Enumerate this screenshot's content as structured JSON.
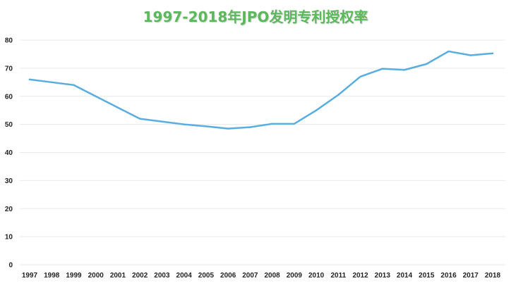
{
  "chart_data": {
    "type": "line",
    "title": "1997-2018年JPO发明专利授权率",
    "xlabel": "",
    "ylabel": "",
    "x": [
      "1997",
      "1998",
      "1999",
      "2000",
      "2001",
      "2002",
      "2003",
      "2004",
      "2005",
      "2006",
      "2007",
      "2008",
      "2009",
      "2010",
      "2011",
      "2012",
      "2013",
      "2014",
      "2015",
      "2016",
      "2017",
      "2018"
    ],
    "series": [
      {
        "values": [
          66,
          65,
          64,
          60,
          56,
          52,
          51,
          50,
          49.3,
          48.5,
          49,
          50.2,
          50.2,
          55,
          60.5,
          67,
          69.8,
          69.4,
          71.5,
          76,
          74.6,
          75.3
        ]
      }
    ],
    "ylim": [
      0,
      80
    ],
    "yticks": [
      0,
      10,
      20,
      30,
      40,
      50,
      60,
      70,
      80
    ],
    "grid": true,
    "legend": "none",
    "colors": {
      "line": "#5aade0",
      "grid": "#e9e9e9",
      "title": "#5cb85c"
    }
  }
}
